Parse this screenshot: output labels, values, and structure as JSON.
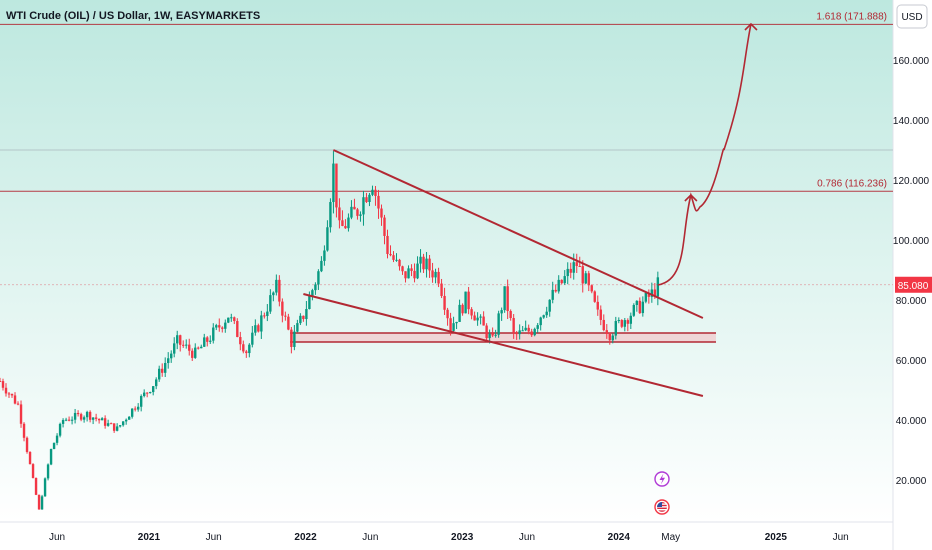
{
  "header": {
    "title": "WTI Crude (OIL) / US Dollar, 1W, EASYMARKETS"
  },
  "currency_button": {
    "label": "USD"
  },
  "last_price": {
    "value": "85.080",
    "color": "#f23645"
  },
  "fib_levels": [
    {
      "label": "1.618 (171.888)",
      "value": 171.888
    },
    {
      "label": "0.786 (116.236)",
      "value": 116.236
    }
  ],
  "colors": {
    "up": "#089981",
    "down": "#f23645",
    "drawing": "#b22833",
    "background_top": "#bde8df",
    "background_bottom": "#ffffff"
  },
  "chart_data": {
    "type": "candlestick",
    "y_tick_labels": [
      "20.000",
      "40.000",
      "60.000",
      "80.000",
      "100.000",
      "120.000",
      "140.000",
      "160.000"
    ],
    "y_ticks": [
      20,
      40,
      60,
      80,
      100,
      120,
      140,
      160
    ],
    "x_tick_labels": [
      "Jun",
      "2021",
      "Jun",
      "2022",
      "Jun",
      "2023",
      "Jun",
      "2024",
      "May",
      "2025",
      "Jun"
    ],
    "x_ticks": [
      "2020-06-01",
      "2021-01-01",
      "2021-06-01",
      "2022-01-01",
      "2022-06-01",
      "2023-01-01",
      "2023-06-01",
      "2024-01-01",
      "2024-05-01",
      "2025-01-01",
      "2025-06-01"
    ],
    "bold_x_ticks": [
      "2021",
      "2022",
      "2023",
      "2024",
      "2025"
    ],
    "x_range": [
      "2020-01-20",
      "2025-10-01"
    ],
    "y_range": [
      5,
      175
    ],
    "approx_price_path": [
      [
        "2020-01-20",
        53
      ],
      [
        "2020-03-02",
        45
      ],
      [
        "2020-04-20",
        10
      ],
      [
        "2020-05-18",
        30
      ],
      [
        "2020-06-15",
        40
      ],
      [
        "2020-08-10",
        42
      ],
      [
        "2020-10-19",
        37
      ],
      [
        "2020-12-07",
        46
      ],
      [
        "2021-01-11",
        52
      ],
      [
        "2021-03-08",
        66
      ],
      [
        "2021-04-19",
        62
      ],
      [
        "2021-06-07",
        70
      ],
      [
        "2021-07-05",
        75
      ],
      [
        "2021-08-16",
        63
      ],
      [
        "2021-10-04",
        78
      ],
      [
        "2021-10-25",
        84
      ],
      [
        "2021-11-29",
        66
      ],
      [
        "2021-12-27",
        75
      ],
      [
        "2022-02-07",
        92
      ],
      [
        "2022-03-07",
        124
      ],
      [
        "2022-03-21",
        103
      ],
      [
        "2022-05-02",
        110
      ],
      [
        "2022-06-06",
        120
      ],
      [
        "2022-07-11",
        97
      ],
      [
        "2022-08-15",
        88
      ],
      [
        "2022-10-03",
        92
      ],
      [
        "2022-11-07",
        88
      ],
      [
        "2022-12-05",
        71
      ],
      [
        "2023-01-09",
        80
      ],
      [
        "2023-03-13",
        66
      ],
      [
        "2023-04-10",
        82
      ],
      [
        "2023-05-01",
        68
      ],
      [
        "2023-06-12",
        70
      ],
      [
        "2023-07-24",
        80
      ],
      [
        "2023-09-11",
        90
      ],
      [
        "2023-09-25",
        92
      ],
      [
        "2023-10-16",
        86
      ],
      [
        "2023-11-13",
        75
      ],
      [
        "2023-12-11",
        69
      ],
      [
        "2024-01-08",
        73
      ],
      [
        "2024-02-19",
        78
      ],
      [
        "2024-03-18",
        82
      ],
      [
        "2024-04-01",
        85
      ]
    ],
    "horizontal_lines": [
      171.888,
      130,
      116.236,
      85.08
    ],
    "support_zone": [
      66,
      69
    ],
    "wedge_upper": [
      [
        "2022-03-07",
        130
      ],
      [
        "2024-07-15",
        74
      ]
    ],
    "wedge_lower": [
      [
        "2021-12-27",
        82
      ],
      [
        "2024-07-15",
        48
      ]
    ],
    "projection": [
      [
        "2024-04-01",
        85
      ],
      [
        "2024-06-17",
        115
      ],
      [
        "2024-07-08",
        111
      ],
      [
        "2024-09-02",
        130
      ],
      [
        "2024-11-04",
        172
      ]
    ]
  }
}
